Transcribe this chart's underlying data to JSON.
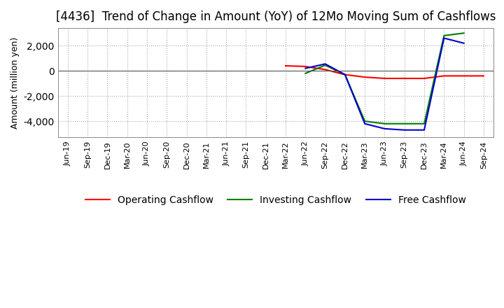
{
  "title": "[4436]  Trend of Change in Amount (YoY) of 12Mo Moving Sum of Cashflows",
  "ylabel": "Amount (million yen)",
  "x_labels": [
    "Jun-19",
    "Sep-19",
    "Dec-19",
    "Mar-20",
    "Jun-20",
    "Sep-20",
    "Dec-20",
    "Mar-21",
    "Jun-21",
    "Sep-21",
    "Dec-21",
    "Mar-22",
    "Jun-22",
    "Sep-22",
    "Dec-22",
    "Mar-23",
    "Jun-23",
    "Sep-23",
    "Dec-23",
    "Mar-24",
    "Jun-24",
    "Sep-24"
  ],
  "operating": [
    null,
    null,
    null,
    null,
    null,
    null,
    null,
    null,
    null,
    null,
    null,
    400,
    350,
    100,
    -300,
    -500,
    -600,
    -600,
    -600,
    -400,
    -400,
    -400
  ],
  "investing": [
    null,
    null,
    null,
    null,
    null,
    null,
    null,
    null,
    null,
    null,
    null,
    null,
    -200,
    450,
    -300,
    -4000,
    -4200,
    -4200,
    -4200,
    2800,
    3000,
    null
  ],
  "free": [
    null,
    null,
    null,
    null,
    null,
    null,
    null,
    null,
    null,
    null,
    null,
    null,
    200,
    550,
    -300,
    -4200,
    -4600,
    -4700,
    -4700,
    2600,
    2200,
    null
  ],
  "operating_color": "#ff0000",
  "investing_color": "#008000",
  "free_color": "#0000cc",
  "background_color": "#ffffff",
  "grid_color": "#aaaaaa",
  "ylim": [
    -5300,
    3400
  ],
  "yticks": [
    -4000,
    -2000,
    0,
    2000
  ],
  "title_fontsize": 12,
  "axis_fontsize": 9,
  "tick_fontsize": 8,
  "legend_fontsize": 10
}
